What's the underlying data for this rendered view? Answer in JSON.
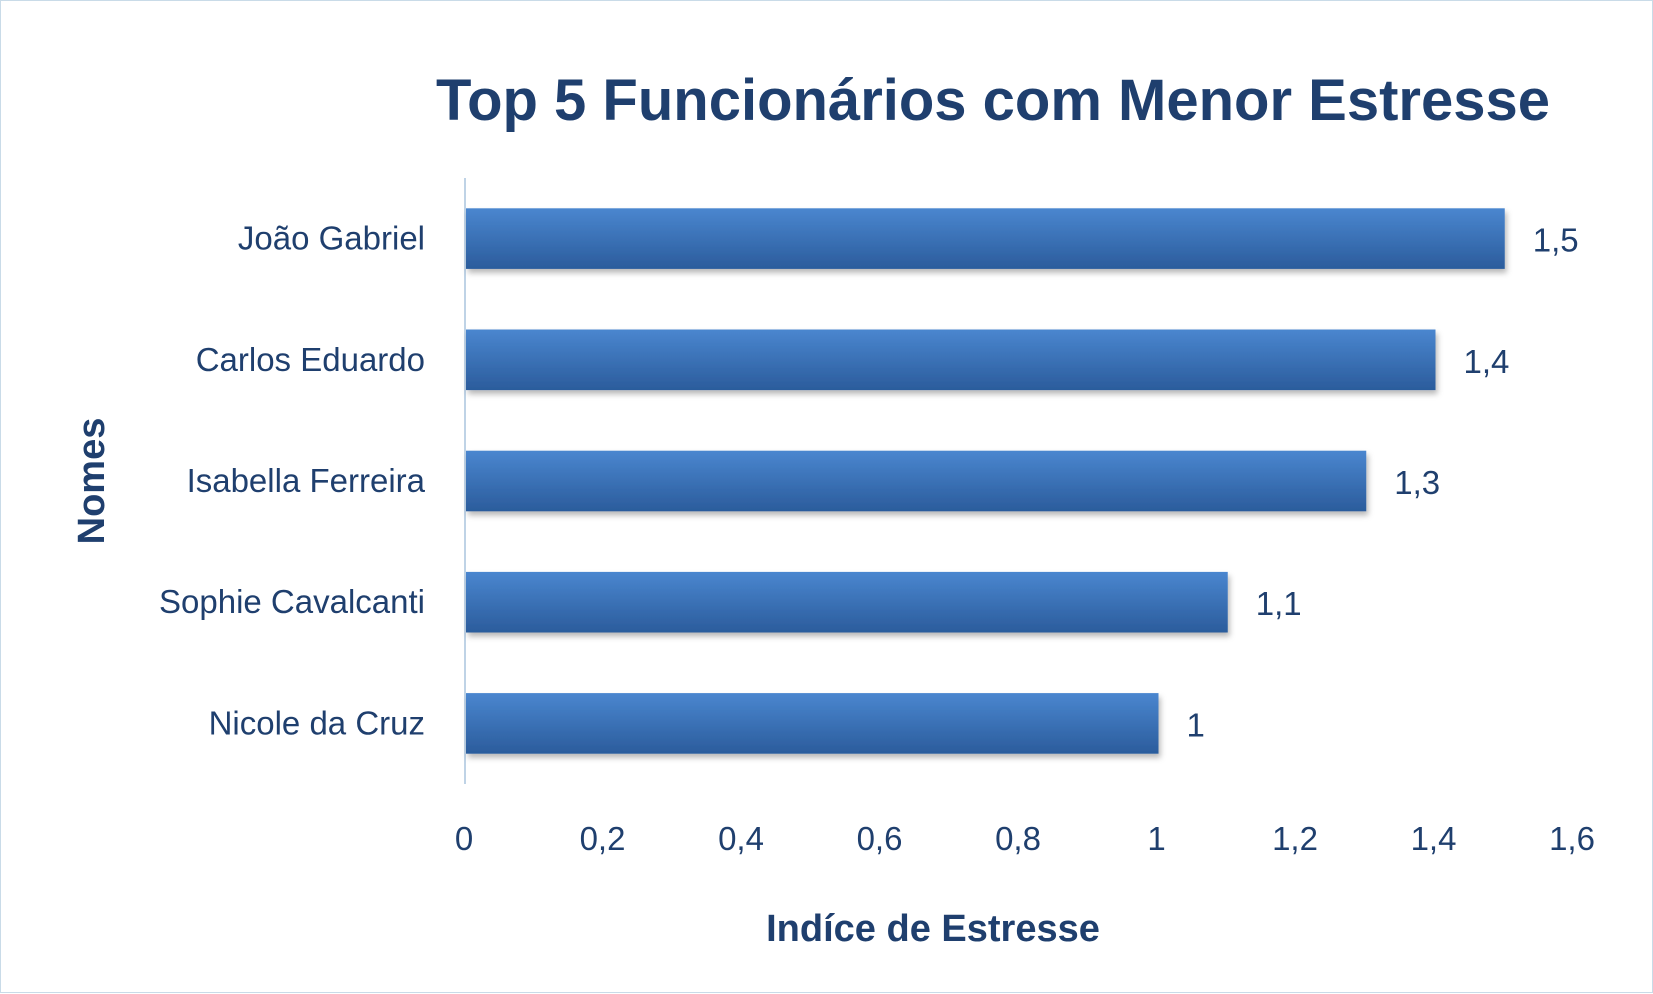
{
  "chart_data": {
    "type": "bar",
    "orientation": "horizontal",
    "title": "Top 5 Funcionários com Menor Estresse",
    "xlabel": "Indíce de Estresse",
    "ylabel": "Nomes",
    "categories": [
      "João Gabriel",
      "Carlos Eduardo",
      "Isabella Ferreira",
      "Sophie Cavalcanti",
      "Nicole da Cruz"
    ],
    "values": [
      1.5,
      1.4,
      1.3,
      1.1,
      1
    ],
    "data_labels": [
      "1,5",
      "1,4",
      "1,3",
      "1,1",
      "1"
    ],
    "xlim": [
      0,
      1.6
    ],
    "xticks": [
      0,
      0.2,
      0.4,
      0.6,
      0.8,
      1,
      1.2,
      1.4,
      1.6
    ],
    "xtick_labels": [
      "0",
      "0,2",
      "0,4",
      "0,6",
      "0,8",
      "1",
      "1,2",
      "1,4",
      "1,6"
    ],
    "grid": false,
    "legend": "none",
    "colors": {
      "bar_top": "#4a86cf",
      "bar_bottom": "#2b5c9c",
      "text": "#1f3f6e",
      "axis_line": "#bfd3e6",
      "frame": "#c9dbe8"
    }
  }
}
